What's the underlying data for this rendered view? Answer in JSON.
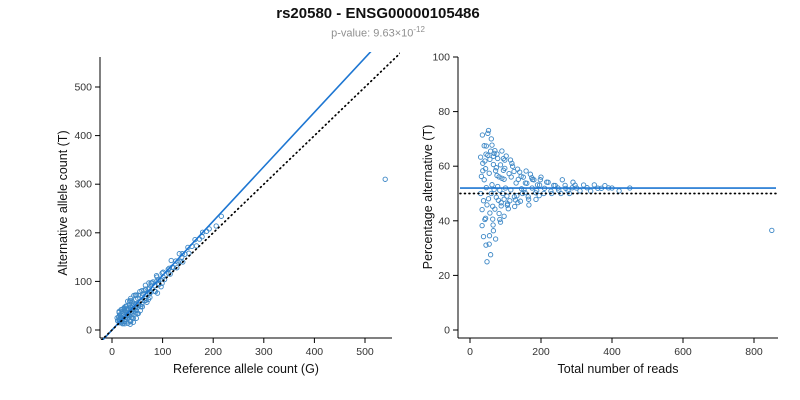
{
  "page": {
    "title": "rs20580 - ENSG00000105486",
    "subtitle": {
      "prefix": "p-value: ",
      "base": "9.63×10",
      "exponent": "-12",
      "full": "p-value: 9.63×10^-12"
    }
  },
  "colors": {
    "point": "#3c87c6",
    "line": "#1d76d2",
    "identity": "#000000",
    "axis": "#000000",
    "tick_text": "#333333",
    "subtitle": "#8f8f8f",
    "title": "#111111"
  },
  "chart_data": [
    {
      "type": "scatter",
      "title": "rs20580 - ENSG00000105486",
      "subtitle": "p-value: 9.63×10^-12",
      "xlabel": "Reference allele count (G)",
      "ylabel": "Alternative allele count (T)",
      "xlim": [
        0,
        550
      ],
      "ylim": [
        0,
        550
      ],
      "xticks": [
        0,
        100,
        200,
        300,
        400,
        500
      ],
      "yticks": [
        0,
        100,
        200,
        300,
        400,
        500
      ],
      "grid": false,
      "legend": "none",
      "point_style": "open-circle",
      "fit_line": {
        "style": "solid-blue",
        "slope": 1.12,
        "intercept": 0
      },
      "identity_line": {
        "style": "dotted-black",
        "slope": 1,
        "intercept": 0
      },
      "points": [
        [
          15,
          15
        ],
        [
          14,
          18
        ],
        [
          19,
          15
        ],
        [
          14,
          22
        ],
        [
          20,
          18
        ],
        [
          18,
          22
        ],
        [
          25,
          17
        ],
        [
          18,
          26
        ],
        [
          22,
          24
        ],
        [
          26,
          22
        ],
        [
          18,
          32
        ],
        [
          27,
          25
        ],
        [
          23,
          31
        ],
        [
          32,
          24
        ],
        [
          20,
          38
        ],
        [
          30,
          30
        ],
        [
          29,
          33
        ],
        [
          35,
          29
        ],
        [
          26,
          40
        ],
        [
          33,
          35
        ],
        [
          39,
          31
        ],
        [
          30,
          42
        ],
        [
          38,
          36
        ],
        [
          27,
          49
        ],
        [
          37,
          41
        ],
        [
          42,
          38
        ],
        [
          36,
          46
        ],
        [
          41,
          43
        ],
        [
          34,
          52
        ],
        [
          48,
          40
        ],
        [
          40,
          50
        ],
        [
          46,
          46
        ],
        [
          39,
          55
        ],
        [
          50,
          46
        ],
        [
          37,
          61
        ],
        [
          48,
          52
        ],
        [
          57,
          48
        ],
        [
          47,
          63
        ],
        [
          56,
          59
        ],
        [
          48,
          72
        ],
        [
          64,
          61
        ],
        [
          60,
          70
        ],
        [
          72,
          63
        ],
        [
          59,
          81
        ],
        [
          70,
          75
        ],
        [
          66,
          84
        ],
        [
          77,
          78
        ],
        [
          74,
          86
        ],
        [
          86,
          79
        ],
        [
          73,
          97
        ],
        [
          84,
          91
        ],
        [
          81,
          99
        ],
        [
          92,
          93
        ],
        [
          89,
          101
        ],
        [
          99,
          96
        ],
        [
          88,
          112
        ],
        [
          101,
          109
        ],
        [
          101,
          119
        ],
        [
          115,
          115
        ],
        [
          113,
          127
        ],
        [
          122,
          128
        ],
        [
          117,
          143
        ],
        [
          130,
          140
        ],
        [
          140,
          140
        ],
        [
          133,
          157
        ],
        [
          144,
          156
        ],
        [
          150,
          170
        ],
        [
          167,
          173
        ],
        [
          173,
          187
        ],
        [
          179,
          201
        ],
        [
          192,
          208
        ],
        [
          206,
          214
        ],
        [
          216,
          234
        ],
        [
          10,
          25
        ],
        [
          13,
          27
        ],
        [
          31,
          14
        ],
        [
          14,
          36
        ],
        [
          36,
          19
        ],
        [
          18,
          42
        ],
        [
          40,
          25
        ],
        [
          24,
          46
        ],
        [
          16,
          29
        ],
        [
          25,
          13
        ],
        [
          16,
          26
        ],
        [
          42,
          16
        ],
        [
          20,
          42
        ],
        [
          36,
          12
        ],
        [
          14,
          38
        ],
        [
          24,
          42
        ],
        [
          48,
          24
        ],
        [
          29,
          49
        ],
        [
          50,
          34
        ],
        [
          31,
          59
        ],
        [
          56,
          40
        ],
        [
          37,
          65
        ],
        [
          60,
          48
        ],
        [
          43,
          71
        ],
        [
          42,
          24
        ],
        [
          30,
          44
        ],
        [
          47,
          35
        ],
        [
          40,
          58
        ],
        [
          57,
          49
        ],
        [
          46,
          72
        ],
        [
          69,
          57
        ],
        [
          55,
          79
        ],
        [
          75,
          67
        ],
        [
          66,
          92
        ],
        [
          90,
          76
        ],
        [
          77,
          97
        ],
        [
          97,
          89
        ],
        [
          89,
          109
        ],
        [
          15,
          21
        ],
        [
          26,
          18
        ],
        [
          21,
          35
        ],
        [
          38,
          26
        ],
        [
          33,
          43
        ],
        [
          47,
          41
        ],
        [
          43,
          53
        ],
        [
          53,
          51
        ],
        [
          51,
          65
        ],
        [
          67,
          61
        ],
        [
          61,
          75
        ],
        [
          74,
          74
        ],
        [
          72,
          84
        ],
        [
          84,
          80
        ],
        [
          79,
          97
        ],
        [
          92,
          96
        ],
        [
          92,
          104
        ],
        [
          104,
          104
        ],
        [
          99,
          117
        ],
        [
          112,
          116
        ],
        [
          111,
          125
        ],
        [
          119,
          129
        ],
        [
          128,
          128
        ],
        [
          126,
          142
        ],
        [
          135,
          141
        ],
        [
          138,
          150
        ],
        [
          139,
          157
        ],
        [
          152,
          158
        ],
        [
          158,
          172
        ],
        [
          164,
          186
        ],
        [
          178,
          192
        ],
        [
          187,
          203
        ],
        [
          11,
          19
        ],
        [
          21,
          13
        ],
        [
          15,
          31
        ],
        [
          37,
          17
        ],
        [
          24,
          44
        ],
        [
          52,
          34
        ],
        [
          35,
          59
        ],
        [
          59,
          53
        ],
        [
          52,
          72
        ],
        [
          67,
          65
        ],
        [
          63,
          81
        ],
        [
          74,
          78
        ],
        [
          540,
          310
        ]
      ]
    },
    {
      "type": "scatter",
      "xlabel": "Total number of reads",
      "ylabel": "Percentage alternative (T)",
      "xlim": [
        0,
        880
      ],
      "ylim": [
        0,
        100
      ],
      "xticks": [
        0,
        200,
        400,
        600,
        800
      ],
      "yticks": [
        0,
        20,
        40,
        60,
        80,
        100
      ],
      "grid": false,
      "legend": "none",
      "point_style": "open-circle",
      "fit_line": {
        "style": "solid-blue",
        "y": 52
      },
      "identity_line": {
        "style": "dotted-black",
        "y": 50
      },
      "points_derived_from": "chart 0 allele counts: x = G + T, y = 100 * T / (G + T)"
    }
  ]
}
